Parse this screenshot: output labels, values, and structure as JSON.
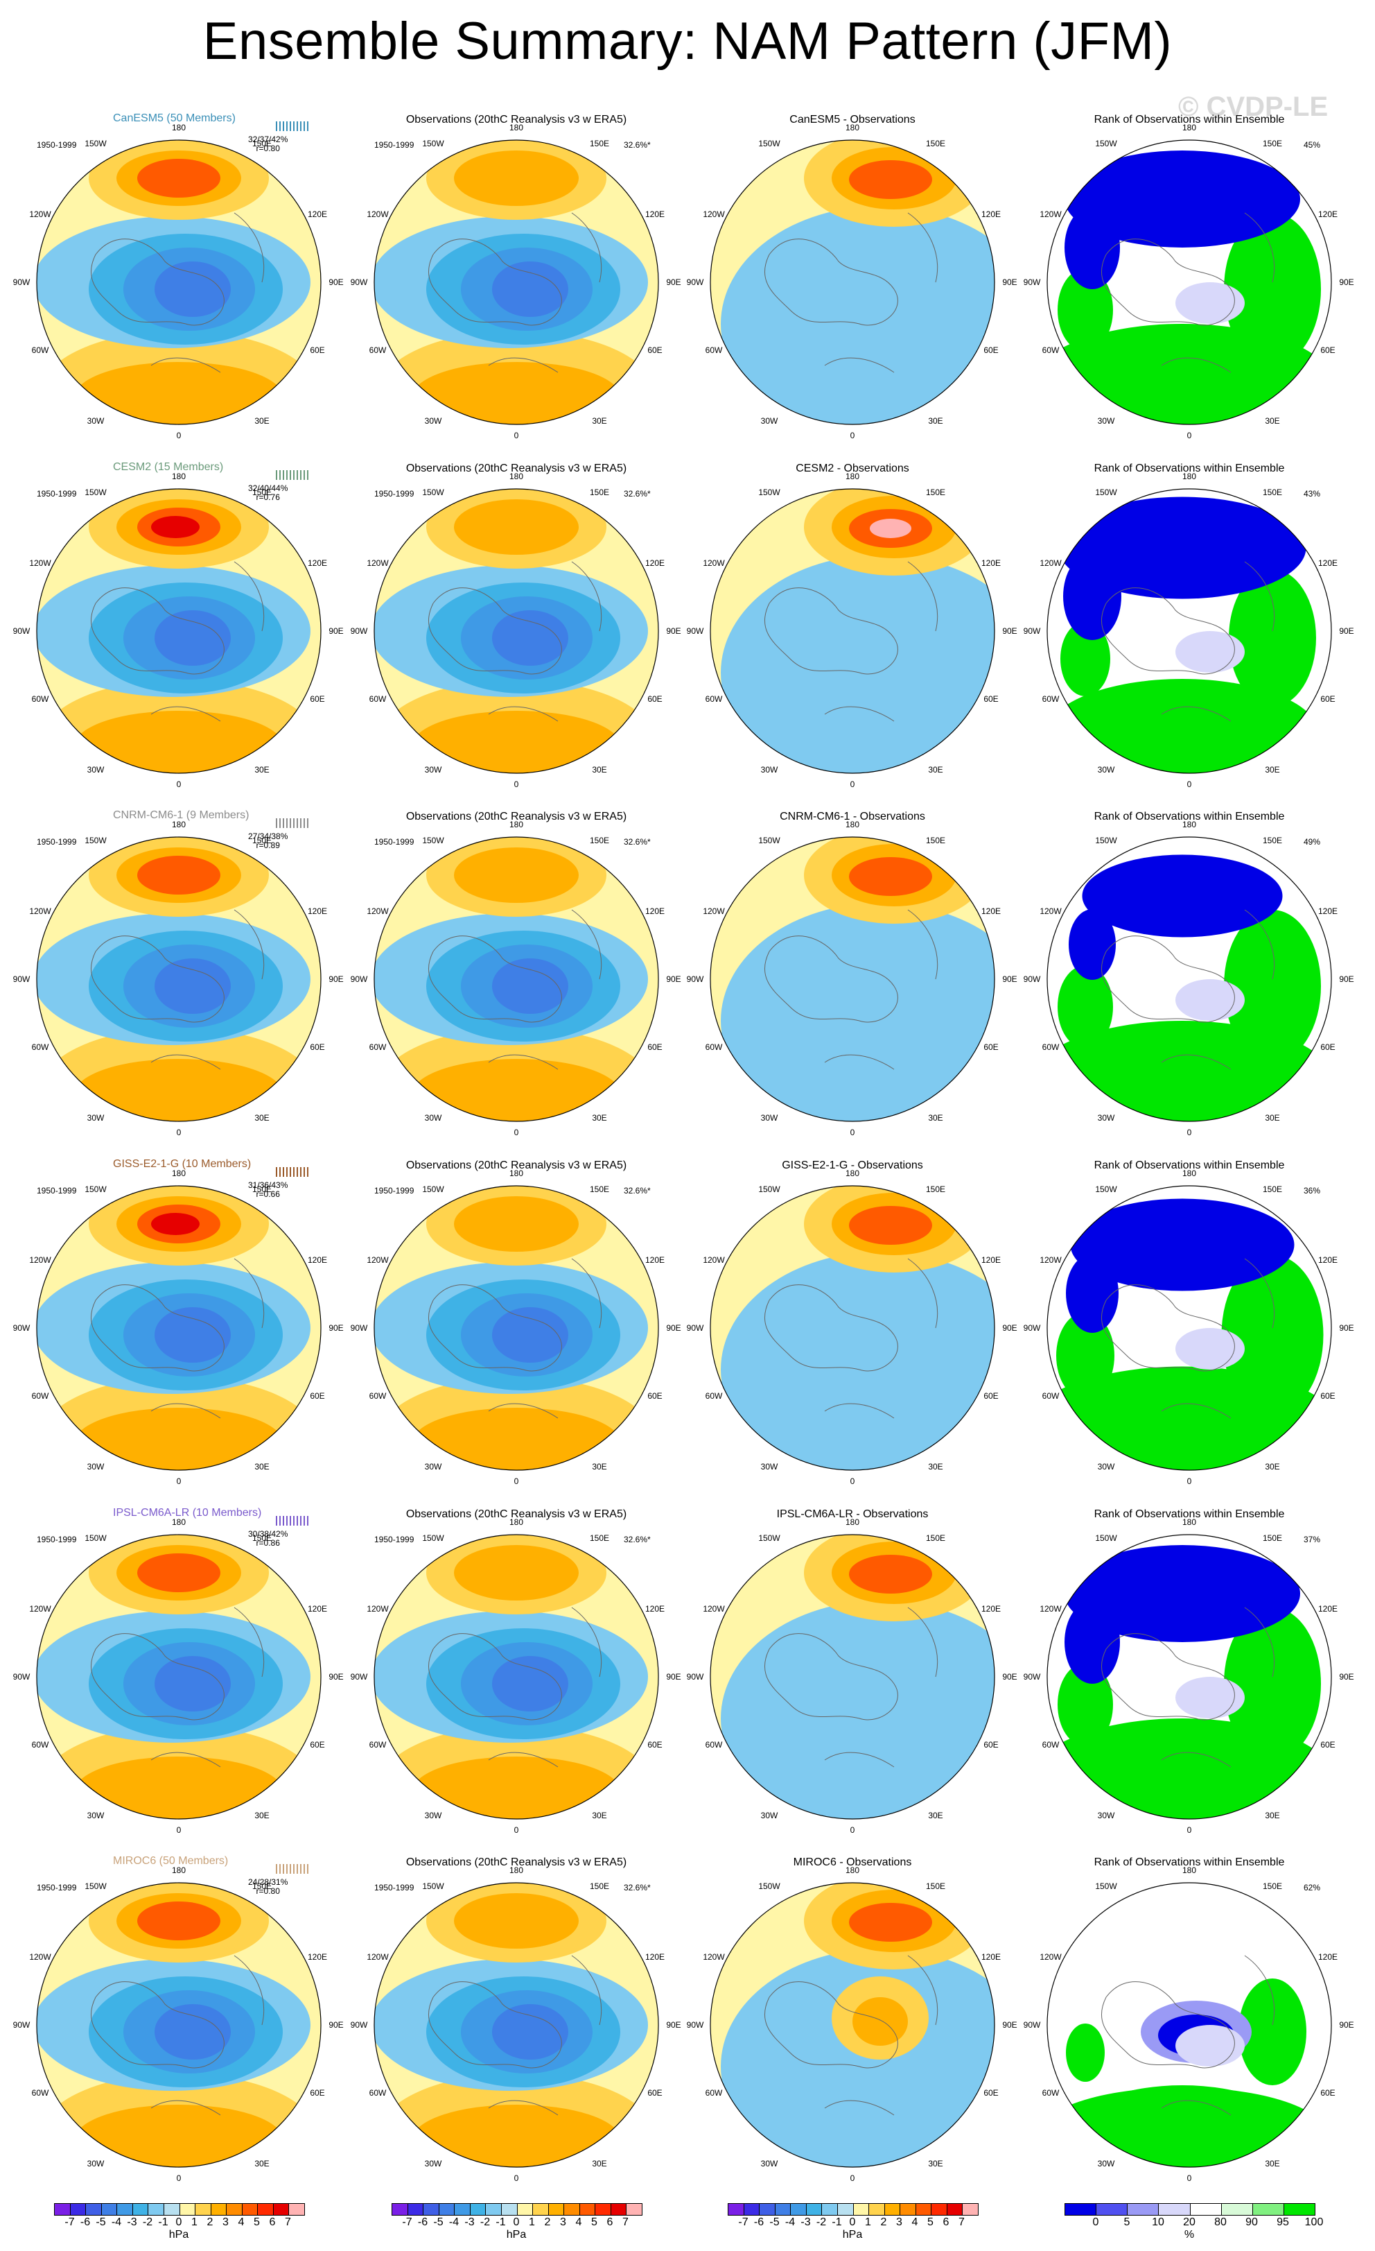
{
  "title": "Ensemble Summary: NAM Pattern (JFM)",
  "watermark": "© CVDP-LE",
  "obs_title": "Observations (20thC Reanalysis v3 w ERA5)",
  "period": "1950-1999",
  "obs_pct": "32.6%*",
  "rank_title": "Rank of Observations within Ensemble",
  "lon_labels": {
    "top": "180",
    "bottom": "0",
    "l1": "150W",
    "l2": "120W",
    "l3": "90W",
    "l4": "60W",
    "l5": "30W",
    "r1": "150E",
    "r2": "120E",
    "r3": "90E",
    "r4": "60E",
    "r5": "30E"
  },
  "rows": [
    {
      "model": "CanESM5 (50 Members)",
      "diff_title": "CanESM5 - Observations",
      "color": "#3a8fb7",
      "stats": "32/37/42%",
      "r": "r=0.80",
      "rank_pct": "45%"
    },
    {
      "model": "CESM2 (15 Members)",
      "diff_title": "CESM2 - Observations",
      "color": "#6a9a7a",
      "stats": "32/40/44%",
      "r": "r=0.76",
      "rank_pct": "43%"
    },
    {
      "model": "CNRM-CM6-1 (9 Members)",
      "diff_title": "CNRM-CM6-1 - Observations",
      "color": "#8c8c8c",
      "stats": "27/34/38%",
      "r": "r=0.89",
      "rank_pct": "49%"
    },
    {
      "model": "GISS-E2-1-G (10 Members)",
      "diff_title": "GISS-E2-1-G - Observations",
      "color": "#9a5a2a",
      "stats": "31/36/43%",
      "r": "r=0.66",
      "rank_pct": "36%"
    },
    {
      "model": "IPSL-CM6A-LR (10 Members)",
      "diff_title": "IPSL-CM6A-LR - Observations",
      "color": "#7a5acc",
      "stats": "30/38/42%",
      "r": "r=0.86",
      "rank_pct": "37%"
    },
    {
      "model": "MIROC6 (50 Members)",
      "diff_title": "MIROC6 - Observations",
      "color": "#c8a27a",
      "stats": "24/28/31%",
      "r": "r=0.80",
      "rank_pct": "62%"
    }
  ],
  "colorbar_hpa": {
    "ticks": [
      "-7",
      "-6",
      "-5",
      "-4",
      "-3",
      "-2",
      "-1",
      "0",
      "1",
      "2",
      "3",
      "4",
      "5",
      "6",
      "7"
    ],
    "colors": [
      "#7a1fe6",
      "#3c2be6",
      "#3f5fe6",
      "#3f7fe6",
      "#3f9ae6",
      "#3fb2e6",
      "#7fcaf0",
      "#b8e0f0",
      "#fff6a8",
      "#ffd34d",
      "#ffb000",
      "#ff8c00",
      "#ff5a00",
      "#ff2a00",
      "#e60000",
      "#ffb3b3"
    ],
    "unit": "hPa"
  },
  "colorbar_rank": {
    "ticks": [
      "0",
      "5",
      "10",
      "20",
      "80",
      "90",
      "95",
      "100"
    ],
    "colors": [
      "#0000e6",
      "#5050f0",
      "#9a9af5",
      "#d8d8fa",
      "#ffffff",
      "#d8fad8",
      "#80f080",
      "#00e600"
    ],
    "unit": "%"
  },
  "chart_data": [
    {
      "type": "heatmap",
      "title": "CanESM5 (50 Members)",
      "subtitle": "1950-1999",
      "stats": "32/37/42%",
      "r": 0.8,
      "units": "hPa"
    },
    {
      "type": "heatmap",
      "title": "Observations (20thC Reanalysis v3 w ERA5)",
      "pct": "32.6%*",
      "units": "hPa"
    },
    {
      "type": "heatmap",
      "title": "CanESM5 - Observations",
      "units": "hPa"
    },
    {
      "type": "heatmap",
      "title": "Rank of Observations within Ensemble",
      "pct": "45%",
      "units": "%"
    },
    {
      "type": "heatmap",
      "title": "CESM2 (15 Members)",
      "stats": "32/40/44%",
      "r": 0.76
    },
    {
      "type": "heatmap",
      "title": "CESM2 - Observations"
    },
    {
      "type": "heatmap",
      "title": "Rank of Observations within Ensemble",
      "pct": "43%"
    },
    {
      "type": "heatmap",
      "title": "CNRM-CM6-1 (9 Members)",
      "stats": "27/34/38%",
      "r": 0.89
    },
    {
      "type": "heatmap",
      "title": "CNRM-CM6-1 - Observations"
    },
    {
      "type": "heatmap",
      "title": "Rank of Observations within Ensemble",
      "pct": "49%"
    },
    {
      "type": "heatmap",
      "title": "GISS-E2-1-G (10 Members)",
      "stats": "31/36/43%",
      "r": 0.66
    },
    {
      "type": "heatmap",
      "title": "GISS-E2-1-G - Observations"
    },
    {
      "type": "heatmap",
      "title": "Rank of Observations within Ensemble",
      "pct": "36%"
    },
    {
      "type": "heatmap",
      "title": "IPSL-CM6A-LR (10 Members)",
      "stats": "30/38/42%",
      "r": 0.86
    },
    {
      "type": "heatmap",
      "title": "IPSL-CM6A-LR - Observations"
    },
    {
      "type": "heatmap",
      "title": "Rank of Observations within Ensemble",
      "pct": "37%"
    },
    {
      "type": "heatmap",
      "title": "MIROC6 (50 Members)",
      "stats": "24/28/31%",
      "r": 0.8
    },
    {
      "type": "heatmap",
      "title": "MIROC6 - Observations"
    },
    {
      "type": "heatmap",
      "title": "Rank of Observations within Ensemble",
      "pct": "62%"
    }
  ]
}
